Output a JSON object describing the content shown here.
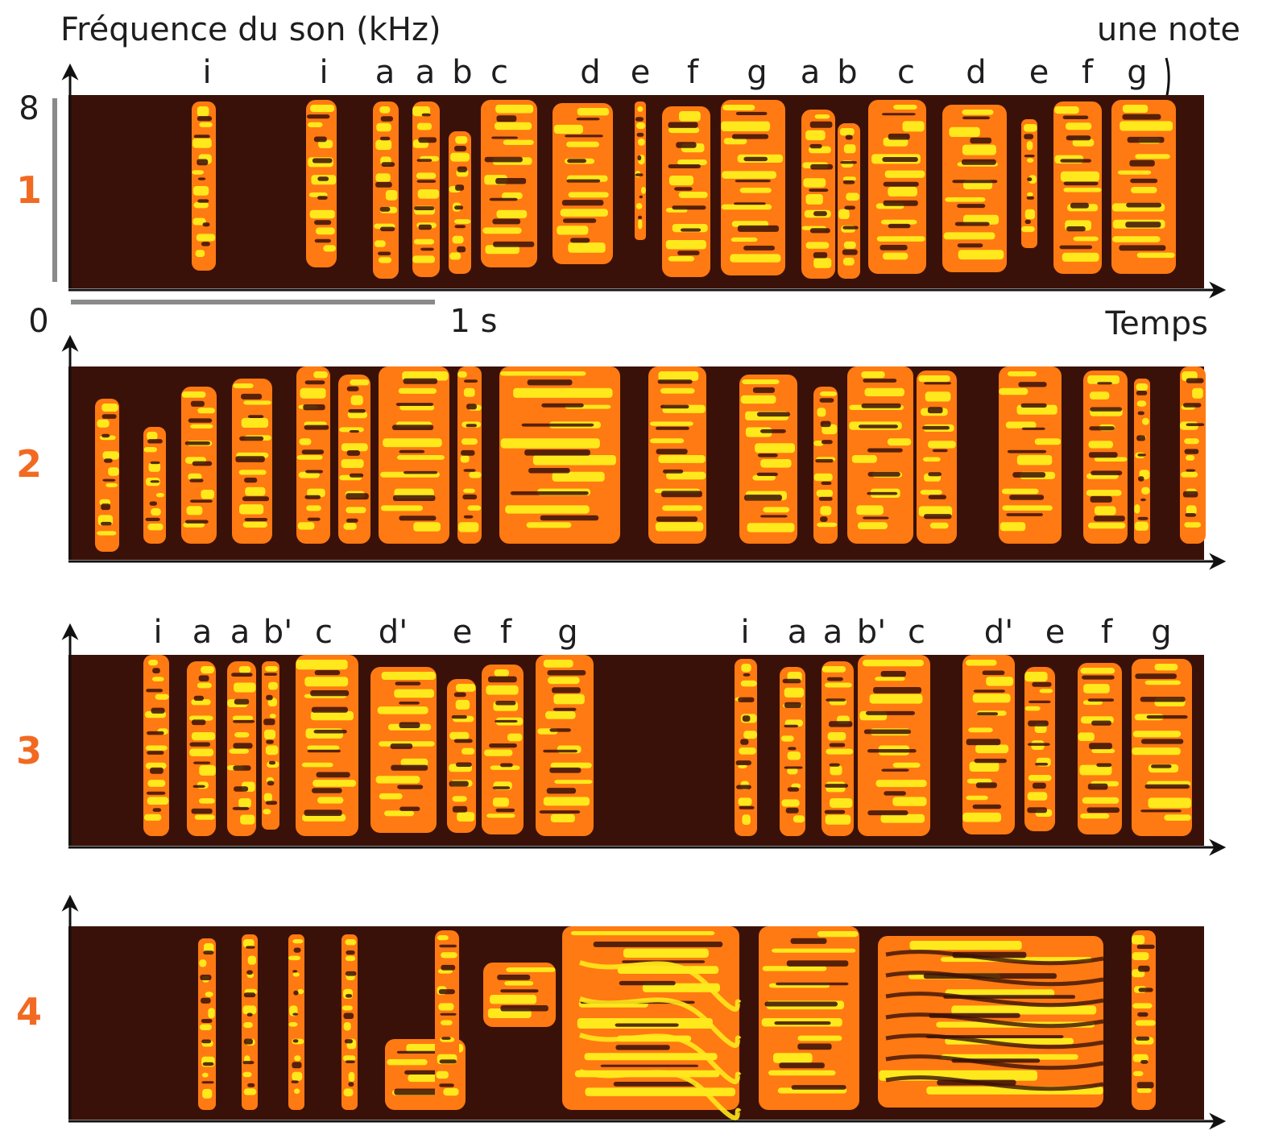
{
  "figure": {
    "y_axis_title": "Fréquence du son (kHz)",
    "y_max_label": "8",
    "y_min_label": "0",
    "time_scale_label": "1 s",
    "x_axis_title": "Temps",
    "annotation": "une note"
  },
  "colors": {
    "background": "#3a1108",
    "orange": "#ff7a12",
    "yellow": "#ffe81c",
    "panel_number": "#f26a22"
  },
  "panels": [
    {
      "number": "1",
      "notes": [
        "i",
        "i",
        "a",
        "a",
        "b",
        "c",
        "d",
        "e",
        "f",
        "g",
        "a",
        "b",
        "c",
        "d",
        "e",
        "f",
        "g"
      ]
    },
    {
      "number": "2",
      "notes": []
    },
    {
      "number": "3",
      "notes": [
        "i",
        "a",
        "a",
        "b'",
        "c",
        "d'",
        "e",
        "f",
        "g",
        "i",
        "a",
        "a",
        "b'",
        "c",
        "d'",
        "e",
        "f",
        "g"
      ]
    },
    {
      "number": "4",
      "notes": []
    }
  ]
}
